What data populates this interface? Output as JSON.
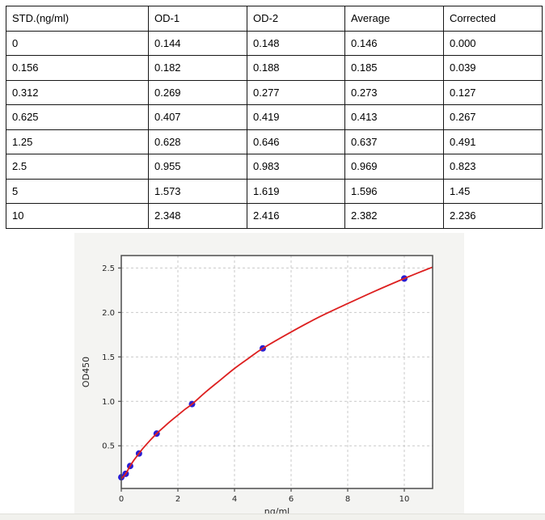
{
  "table": {
    "headers": [
      "STD.(ng/ml)",
      "OD-1",
      "OD-2",
      "Average",
      "Corrected"
    ],
    "rows": [
      [
        "0",
        "0.144",
        "0.148",
        "0.146",
        "0.000"
      ],
      [
        "0.156",
        "0.182",
        "0.188",
        "0.185",
        "0.039"
      ],
      [
        "0.312",
        "0.269",
        "0.277",
        "0.273",
        "0.127"
      ],
      [
        "0.625",
        "0.407",
        "0.419",
        "0.413",
        "0.267"
      ],
      [
        "1.25",
        "0.628",
        "0.646",
        "0.637",
        "0.491"
      ],
      [
        "2.5",
        "0.955",
        "0.983",
        "0.969",
        "0.823"
      ],
      [
        "5",
        "1.573",
        "1.619",
        "1.596",
        "1.45"
      ],
      [
        "10",
        "2.348",
        "2.416",
        "2.382",
        "2.236"
      ]
    ]
  },
  "chart_data": {
    "type": "scatter",
    "title": "",
    "xlabel": "ng/ml",
    "ylabel": "OD450",
    "xlim": [
      0,
      11
    ],
    "ylim": [
      0.02,
      2.64
    ],
    "x_ticks": [
      0,
      2,
      4,
      6,
      8,
      10
    ],
    "y_ticks": [
      "0.5",
      "1.0",
      "1.5",
      "2.0",
      "2.5"
    ],
    "grid": "dashed",
    "legend": "none",
    "points": [
      [
        0,
        0.146
      ],
      [
        0.156,
        0.185
      ],
      [
        0.312,
        0.273
      ],
      [
        0.625,
        0.413
      ],
      [
        1.25,
        0.637
      ],
      [
        2.5,
        0.969
      ],
      [
        5,
        1.596
      ],
      [
        10,
        2.382
      ]
    ],
    "fit_curve": [
      [
        0,
        0.13
      ],
      [
        0.156,
        0.185
      ],
      [
        0.312,
        0.273
      ],
      [
        0.45,
        0.34
      ],
      [
        0.625,
        0.413
      ],
      [
        0.75,
        0.465
      ],
      [
        1.0,
        0.555
      ],
      [
        1.25,
        0.637
      ],
      [
        1.5,
        0.71
      ],
      [
        1.75,
        0.78
      ],
      [
        2.0,
        0.845
      ],
      [
        2.25,
        0.91
      ],
      [
        2.5,
        0.969
      ],
      [
        3.0,
        1.11
      ],
      [
        3.5,
        1.24
      ],
      [
        4.0,
        1.37
      ],
      [
        4.5,
        1.485
      ],
      [
        5.0,
        1.596
      ],
      [
        6.0,
        1.78
      ],
      [
        7.0,
        1.95
      ],
      [
        8.0,
        2.1
      ],
      [
        9.0,
        2.245
      ],
      [
        10.0,
        2.382
      ],
      [
        10.5,
        2.447
      ],
      [
        11.0,
        2.51
      ]
    ],
    "colors": {
      "point": "#2a1fd4",
      "curve": "#dd2020",
      "figure_bg": "#f4f4f2",
      "plot_bg": "#ffffff",
      "grid": "#c9c9c9",
      "spine": "#4d4d4d",
      "tick_text": "#262626"
    }
  }
}
